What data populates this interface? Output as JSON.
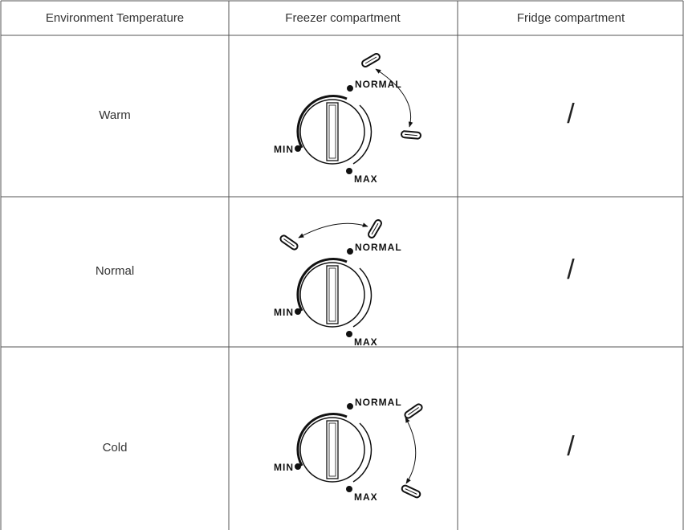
{
  "table": {
    "header": [
      "Environment Temperature",
      "Freezer compartment",
      "Fridge compartment"
    ],
    "rows": [
      {
        "environment": "Warm",
        "freezer": {
          "min": "MIN",
          "normal": "NORMAL",
          "max": "MAX"
        },
        "fridge": "/"
      },
      {
        "environment": "Normal",
        "freezer": {
          "min": "MIN",
          "normal": "NORMAL",
          "max": "MAX"
        },
        "fridge": "/"
      },
      {
        "environment": "Cold",
        "freezer": {
          "min": "MIN",
          "normal": "NORMAL",
          "max": "MAX"
        },
        "fridge": "/"
      }
    ]
  }
}
